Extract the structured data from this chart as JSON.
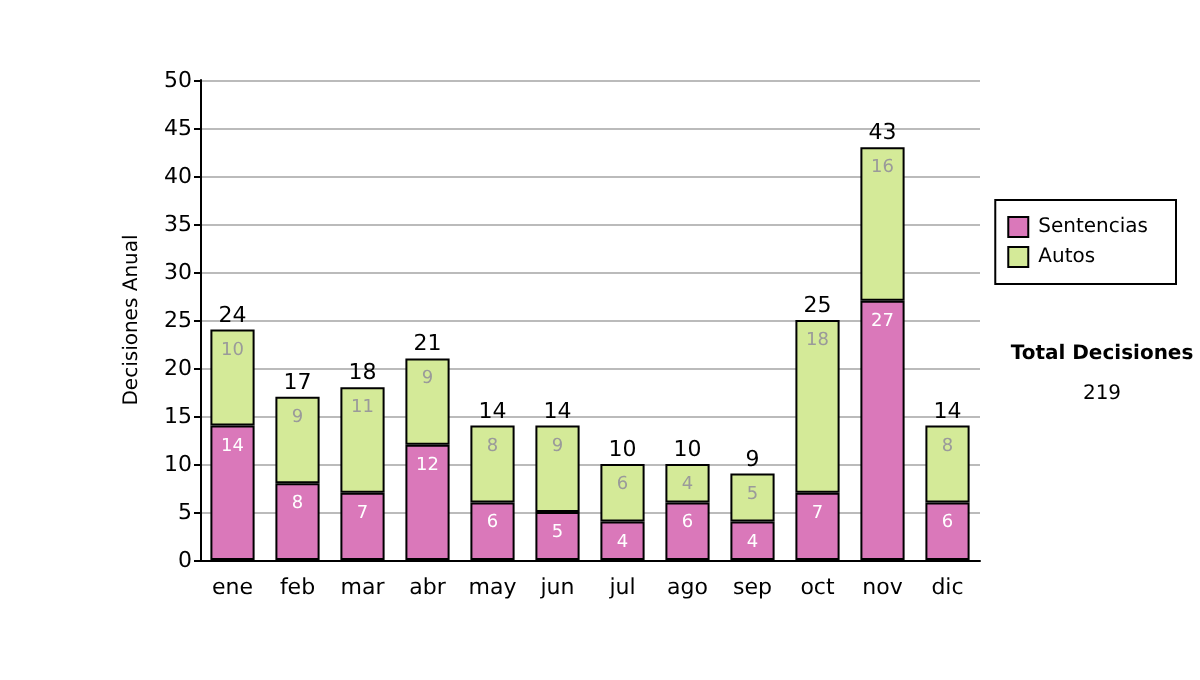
{
  "chart_data": {
    "type": "bar",
    "ylabel": "Decisiones Anual",
    "categories": [
      "ene",
      "feb",
      "mar",
      "abr",
      "may",
      "jun",
      "jul",
      "ago",
      "sep",
      "oct",
      "nov",
      "dic"
    ],
    "series": [
      {
        "name": "Sentencias",
        "color": "#da78ba",
        "values": [
          14,
          8,
          7,
          12,
          6,
          5,
          4,
          6,
          4,
          7,
          27,
          6
        ]
      },
      {
        "name": "Autos",
        "color": "#d4ea98",
        "values": [
          10,
          9,
          11,
          9,
          8,
          9,
          6,
          4,
          5,
          18,
          16,
          8
        ]
      }
    ],
    "stacked": true,
    "data_labels": true,
    "totals": [
      "24",
      "17",
      "18",
      "21",
      "14",
      "14",
      "10",
      "10",
      "9",
      "25",
      "43",
      "14"
    ],
    "ylim": [
      0,
      50
    ],
    "yticks": [
      0,
      5,
      10,
      15,
      20,
      25,
      30,
      35,
      40,
      45,
      50
    ],
    "grid": "y",
    "legend": "right",
    "annotations": [
      "Total Decisiones",
      "219"
    ]
  }
}
